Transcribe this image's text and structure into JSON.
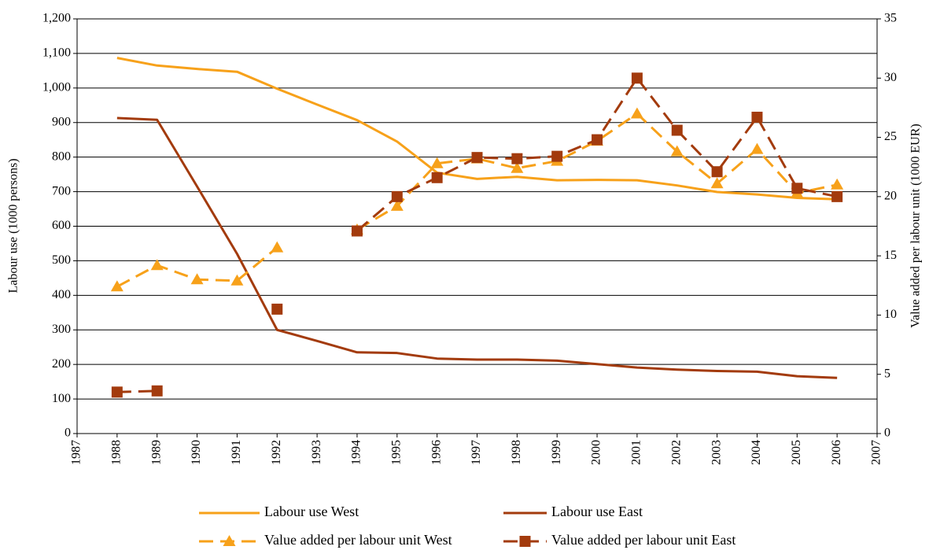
{
  "chart_data": {
    "type": "line",
    "y_label": "Labour use (1000 persons)",
    "y2_label": "Value added per labour unit (1000 EUR)",
    "x": [
      1988,
      1989,
      1990,
      1991,
      1992,
      1993,
      1994,
      1995,
      1996,
      1997,
      1998,
      1999,
      2000,
      2001,
      2002,
      2003,
      2004,
      2005,
      2006
    ],
    "xlim": [
      1987,
      2007
    ],
    "xticks": [
      1987,
      1988,
      1989,
      1990,
      1991,
      1992,
      1993,
      1994,
      1995,
      1996,
      1997,
      1998,
      1999,
      2000,
      2001,
      2002,
      2003,
      2004,
      2005,
      2006,
      2007
    ],
    "ylim": [
      0,
      1200
    ],
    "yticks": [
      0,
      100,
      200,
      300,
      400,
      500,
      600,
      700,
      800,
      900,
      {
        "value": 1000,
        "label": "1,000"
      },
      {
        "value": 1100,
        "label": "1,100"
      },
      {
        "value": 1200,
        "label": "1,200"
      }
    ],
    "y2lim": [
      0,
      35
    ],
    "y2ticks": [
      0,
      5,
      10,
      15,
      20,
      25,
      30,
      35
    ],
    "grid": true,
    "series": [
      {
        "name": "Labour use West",
        "color": "#f7a11a",
        "values": [
          1087,
          1065,
          1055,
          1047,
          998,
          952,
          907,
          845,
          755,
          737,
          743,
          733,
          734,
          733,
          718,
          699,
          692,
          682,
          678
        ]
      },
      {
        "name": "Labour use East",
        "color": "#a33b0d",
        "values": [
          913,
          908,
          715,
          520,
          300,
          268,
          235,
          233,
          217,
          214,
          214,
          211,
          201,
          191,
          185,
          181,
          179,
          166,
          161
        ]
      },
      {
        "name": "Value added per labour unit West",
        "color": "#f7a11a",
        "axis": "y2",
        "dashed": true,
        "marker": "triangle",
        "values": [
          12.4,
          14.2,
          13.0,
          12.9,
          15.7,
          null,
          17.2,
          19.2,
          22.8,
          23.2,
          22.4,
          23.0,
          24.7,
          27.0,
          23.8,
          21.1,
          24.0,
          20.3,
          21.0
        ]
      },
      {
        "name": "Value added per labour unit East",
        "color": "#a33b0d",
        "axis": "y2",
        "dashed": true,
        "marker": "square",
        "values": [
          3.5,
          3.6,
          null,
          null,
          10.5,
          null,
          17.1,
          20.0,
          21.6,
          23.3,
          23.2,
          23.4,
          24.8,
          30.0,
          25.6,
          22.1,
          26.7,
          20.7,
          20.0
        ]
      }
    ]
  }
}
